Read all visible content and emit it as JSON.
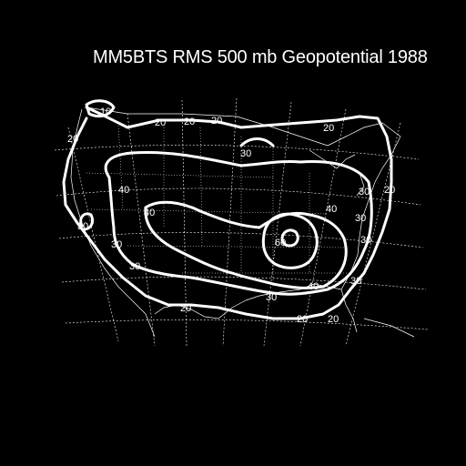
{
  "title": "MM5BTS RMS 500 mb Geopotential 1988",
  "contour_labels": [
    {
      "id": "c10",
      "text": "10"
    },
    {
      "id": "c20a",
      "text": "20"
    },
    {
      "id": "c20b",
      "text": "20"
    },
    {
      "id": "c20c",
      "text": "20"
    },
    {
      "id": "c20d",
      "text": "20"
    },
    {
      "id": "c20e",
      "text": "20"
    },
    {
      "id": "c20f",
      "text": "20"
    },
    {
      "id": "c20g",
      "text": "20"
    },
    {
      "id": "c20h",
      "text": "20"
    },
    {
      "id": "c20i",
      "text": "20"
    },
    {
      "id": "c20j",
      "text": "20"
    },
    {
      "id": "c30a",
      "text": "30"
    },
    {
      "id": "c30b",
      "text": "30"
    },
    {
      "id": "c30c",
      "text": "30"
    },
    {
      "id": "c30d",
      "text": "30"
    },
    {
      "id": "c30e",
      "text": "30"
    },
    {
      "id": "c30f",
      "text": "30"
    },
    {
      "id": "c30g",
      "text": "30"
    },
    {
      "id": "c30h",
      "text": "30"
    },
    {
      "id": "c30i",
      "text": "30"
    },
    {
      "id": "c40a",
      "text": "40"
    },
    {
      "id": "c40b",
      "text": "40"
    },
    {
      "id": "c40c",
      "text": "40"
    },
    {
      "id": "c40d",
      "text": "40"
    },
    {
      "id": "c60",
      "text": "60"
    }
  ],
  "colors": {
    "background": "#000000",
    "foreground": "#ffffff"
  }
}
